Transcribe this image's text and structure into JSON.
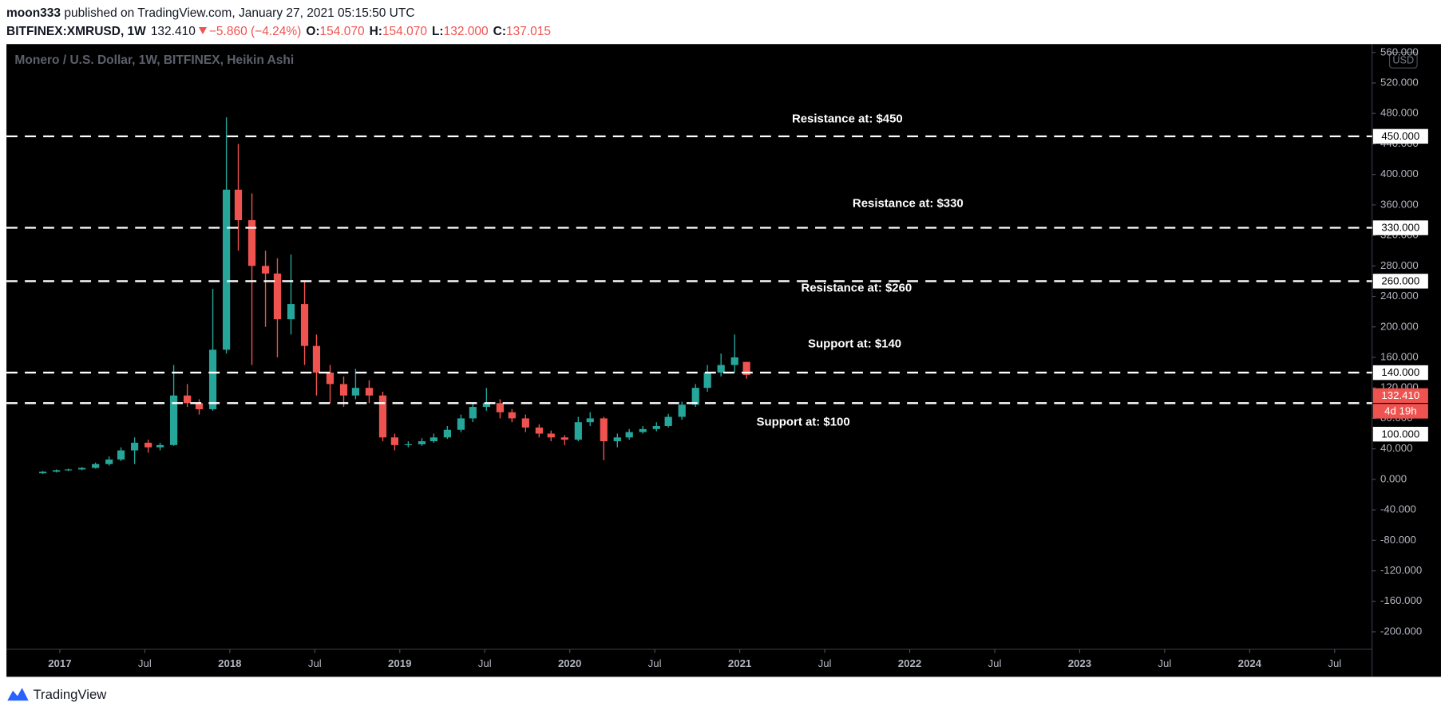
{
  "header": {
    "publisher": "moon333",
    "published": "published on TradingView.com, January 27, 2021 05:15:50 UTC",
    "symbol": "BITFINEX:XMRUSD, 1W",
    "last": "132.410",
    "change": "−5.860 (−4.24%)",
    "o_label": "O:",
    "o": "154.070",
    "h_label": "H:",
    "h": "154.070",
    "l_label": "L:",
    "l": "132.000",
    "c_label": "C:",
    "c": "137.015"
  },
  "footer": {
    "brand": "TradingView"
  },
  "chart_data": {
    "type": "candlestick",
    "title": "Monero / U.S. Dollar, 1W, BITFINEX, Heikin Ashi",
    "currency": "USD",
    "x": [
      2016.9,
      2016.98,
      2017.05,
      2017.13,
      2017.21,
      2017.29,
      2017.36,
      2017.44,
      2017.52,
      2017.59,
      2017.67,
      2017.75,
      2017.82,
      2017.9,
      2017.98,
      2018.05,
      2018.13,
      2018.21,
      2018.28,
      2018.36,
      2018.44,
      2018.51,
      2018.59,
      2018.67,
      2018.74,
      2018.82,
      2018.9,
      2018.97,
      2019.05,
      2019.13,
      2019.2,
      2019.28,
      2019.36,
      2019.43,
      2019.51,
      2019.59,
      2019.66,
      2019.74,
      2019.82,
      2019.89,
      2019.97,
      2020.05,
      2020.12,
      2020.2,
      2020.28,
      2020.35,
      2020.43,
      2020.51,
      2020.58,
      2020.66,
      2020.74,
      2020.81,
      2020.89,
      2020.97,
      2021.04
    ],
    "open": [
      8,
      10,
      12,
      13,
      15,
      20,
      26,
      38,
      48,
      42,
      45,
      110,
      100,
      92,
      170,
      380,
      340,
      280,
      270,
      210,
      230,
      175,
      140,
      125,
      110,
      120,
      110,
      55,
      45,
      46,
      50,
      55,
      65,
      80,
      95,
      100,
      88,
      80,
      68,
      60,
      55,
      52,
      75,
      80,
      50,
      55,
      62,
      66,
      70,
      82,
      98,
      120,
      140,
      150,
      154.07
    ],
    "high": [
      11,
      13,
      14,
      16,
      22,
      30,
      42,
      55,
      52,
      48,
      150,
      125,
      105,
      250,
      475,
      440,
      375,
      300,
      290,
      295,
      260,
      190,
      150,
      135,
      145,
      130,
      115,
      60,
      50,
      54,
      60,
      70,
      85,
      100,
      120,
      105,
      92,
      85,
      72,
      64,
      58,
      82,
      88,
      82,
      60,
      66,
      70,
      75,
      86,
      102,
      125,
      150,
      165,
      190,
      154.07
    ],
    "low": [
      7,
      9,
      11,
      12,
      14,
      18,
      24,
      20,
      35,
      38,
      44,
      95,
      85,
      90,
      165,
      300,
      150,
      200,
      160,
      190,
      150,
      110,
      100,
      95,
      105,
      100,
      50,
      38,
      42,
      44,
      48,
      53,
      62,
      75,
      90,
      80,
      75,
      62,
      55,
      50,
      45,
      50,
      70,
      25,
      42,
      52,
      60,
      63,
      68,
      78,
      95,
      115,
      135,
      140,
      132
    ],
    "close": [
      10,
      12,
      13,
      15,
      20,
      26,
      38,
      48,
      42,
      45,
      110,
      100,
      92,
      170,
      380,
      340,
      280,
      270,
      210,
      230,
      175,
      140,
      125,
      110,
      120,
      110,
      55,
      45,
      46,
      50,
      55,
      65,
      80,
      95,
      100,
      88,
      80,
      68,
      60,
      55,
      52,
      75,
      80,
      50,
      55,
      62,
      66,
      70,
      82,
      98,
      120,
      140,
      150,
      160,
      137.015
    ],
    "up_color": "#26a69a",
    "down_color": "#ef5350",
    "xlim": [
      2016.686,
      2024.72
    ],
    "xticks": [
      {
        "value": 2017,
        "label": "2017"
      },
      {
        "value": 2017.5,
        "label": "Jul"
      },
      {
        "value": 2018,
        "label": "2018"
      },
      {
        "value": 2018.5,
        "label": "Jul"
      },
      {
        "value": 2019,
        "label": "2019"
      },
      {
        "value": 2019.5,
        "label": "Jul"
      },
      {
        "value": 2020,
        "label": "2020"
      },
      {
        "value": 2020.5,
        "label": "Jul"
      },
      {
        "value": 2021,
        "label": "2021"
      },
      {
        "value": 2021.5,
        "label": "Jul"
      },
      {
        "value": 2022,
        "label": "2022"
      },
      {
        "value": 2022.5,
        "label": "Jul"
      },
      {
        "value": 2023,
        "label": "2023"
      },
      {
        "value": 2023.5,
        "label": "Jul"
      },
      {
        "value": 2024,
        "label": "2024"
      },
      {
        "value": 2024.5,
        "label": "Jul"
      }
    ],
    "ylim": [
      -222.9,
      571
    ],
    "yticks": [
      {
        "value": -200,
        "label": "-200.000"
      },
      {
        "value": -160,
        "label": "-160.000"
      },
      {
        "value": -120,
        "label": "-120.000"
      },
      {
        "value": -80,
        "label": "-80.000"
      },
      {
        "value": -40,
        "label": "-40.000"
      },
      {
        "value": 0,
        "label": "0.000"
      },
      {
        "value": 40,
        "label": "40.000"
      },
      {
        "value": 80,
        "label": "80.000"
      },
      {
        "value": 120,
        "label": "120.000"
      },
      {
        "value": 160,
        "label": "160.000"
      },
      {
        "value": 200,
        "label": "200.000"
      },
      {
        "value": 240,
        "label": "240.000"
      },
      {
        "value": 280,
        "label": "280.000"
      },
      {
        "value": 320,
        "label": "320.000"
      },
      {
        "value": 360,
        "label": "360.000"
      },
      {
        "value": 400,
        "label": "400.000"
      },
      {
        "value": 440,
        "label": "440.000"
      },
      {
        "value": 480,
        "label": "480.000"
      },
      {
        "value": 520,
        "label": "520.000"
      },
      {
        "value": 560,
        "label": "560.000"
      }
    ],
    "levels": [
      {
        "value": 450,
        "label": "Resistance at: $450",
        "price_label": "450.000"
      },
      {
        "value": 330,
        "label": "Resistance at: $330",
        "price_label": "330.000"
      },
      {
        "value": 260,
        "label": "Resistance at: $260",
        "price_label": "260.000"
      },
      {
        "value": 140,
        "label": "Support at: $140",
        "price_label": "140.000"
      },
      {
        "value": 100,
        "label": "Support at: $100",
        "price_label": "100.000"
      }
    ],
    "level_color": "#ffffff",
    "last_price": {
      "value": 132.41,
      "label": "132.410"
    },
    "countdown": "4d 19h"
  }
}
